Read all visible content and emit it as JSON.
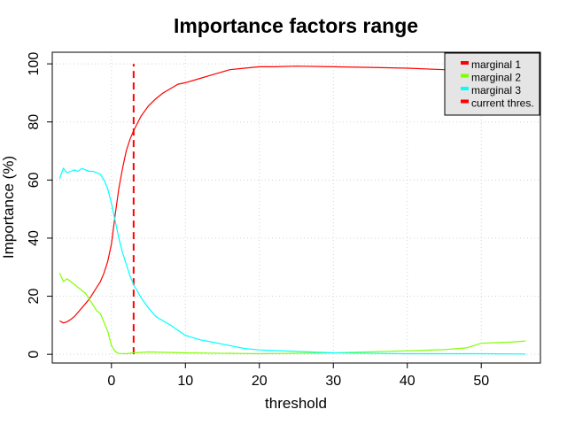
{
  "chart_data": {
    "type": "line",
    "title": "Importance factors range",
    "xlabel": "threshold",
    "ylabel": "Importance (%)",
    "xlim": [
      -8,
      58
    ],
    "ylim": [
      -3,
      104
    ],
    "xticks": [
      0,
      10,
      20,
      30,
      40,
      50
    ],
    "yticks": [
      0,
      20,
      40,
      60,
      80,
      100
    ],
    "grid": true,
    "legend_position": "top-right",
    "series": [
      {
        "name": "marginal 1",
        "color": "#ff0000",
        "x": [
          -7,
          -6.5,
          -6,
          -5.5,
          -5,
          -4.5,
          -4,
          -3.5,
          -3,
          -2.5,
          -2,
          -1.5,
          -1,
          -0.5,
          0,
          0.5,
          1,
          1.5,
          2,
          2.5,
          3,
          4,
          5,
          6,
          7,
          8,
          9,
          10,
          12,
          14,
          16,
          18,
          20,
          22,
          25,
          30,
          35,
          40,
          45,
          47,
          50,
          53,
          56
        ],
        "y": [
          11.5,
          10.8,
          11.2,
          12,
          13,
          14.5,
          16,
          17.5,
          19,
          21,
          23,
          25,
          28,
          32,
          38,
          48,
          57,
          64,
          70,
          74,
          77,
          82,
          85.5,
          88,
          90,
          91.5,
          93,
          93.5,
          95,
          96.5,
          98,
          98.5,
          99,
          99,
          99.2,
          99,
          98.8,
          98.5,
          98,
          98,
          98,
          97.5,
          97
        ]
      },
      {
        "name": "marginal 2",
        "color": "#80ff00",
        "x": [
          -7,
          -6.5,
          -6,
          -5.5,
          -5,
          -4.5,
          -4,
          -3.5,
          -3,
          -2.5,
          -2,
          -1.5,
          -1,
          -0.5,
          0,
          0.5,
          1,
          2,
          3,
          5,
          10,
          20,
          30,
          40,
          45,
          48,
          50,
          52,
          54,
          56
        ],
        "y": [
          28,
          25,
          26,
          25,
          24,
          23,
          22,
          21,
          19,
          17,
          15,
          14,
          11,
          8,
          3,
          1,
          0.3,
          0.2,
          0.5,
          0.8,
          0.5,
          0.2,
          0.5,
          1.2,
          1.6,
          2.2,
          3.8,
          4,
          4.2,
          4.6
        ]
      },
      {
        "name": "marginal 3",
        "color": "#00ffff",
        "x": [
          -7,
          -6.5,
          -6,
          -5.5,
          -5,
          -4.5,
          -4,
          -3.5,
          -3,
          -2.5,
          -2,
          -1.5,
          -1,
          -0.5,
          0,
          0.5,
          1,
          1.5,
          2,
          2.5,
          3,
          4,
          5,
          6,
          8,
          10,
          12,
          14,
          16,
          18,
          20,
          25,
          30,
          40,
          50,
          56
        ],
        "y": [
          60.5,
          64,
          62.5,
          63,
          63.5,
          63,
          64,
          63.5,
          63,
          63,
          62.5,
          62,
          60,
          57,
          52,
          46,
          40,
          35,
          31,
          27,
          24,
          19.5,
          16,
          13,
          10,
          6.5,
          5,
          4,
          3,
          2,
          1.5,
          1,
          0.5,
          0.2,
          0.2,
          0.1
        ]
      }
    ],
    "threshold_line": {
      "name": "current thres.",
      "x": 3,
      "color": "#ff0000"
    },
    "legend_fill": "#e5e5e5"
  }
}
